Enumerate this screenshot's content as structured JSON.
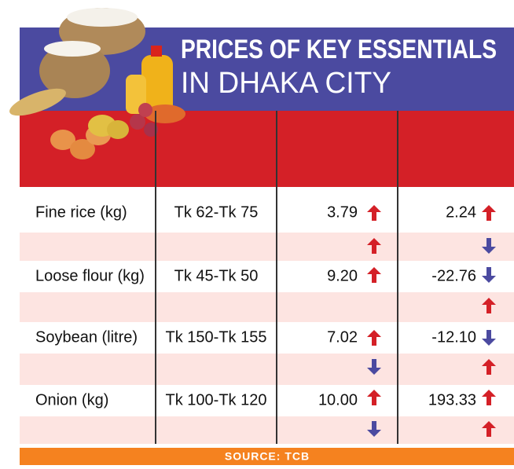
{
  "header": {
    "title": "PRICES OF KEY ESSENTIALS",
    "subtitle": "IN DHAKA CITY"
  },
  "table": {
    "rows": [
      [
        "Fine rice (kg)",
        "Tk 62-Tk 75",
        "3.79",
        "2.24"
      ],
      [
        "Loose flour (kg)",
        "Tk 45-Tk 50",
        "9.20",
        "-22.76"
      ],
      [
        "Soybean (litre)",
        "Tk 150-Tk 155",
        "7.02",
        "-12.10"
      ],
      [
        "Onion (kg)",
        "Tk 100-Tk 120",
        "10.00",
        "193.33"
      ]
    ]
  },
  "footer": {
    "source": "SOURCE: TCB"
  }
}
